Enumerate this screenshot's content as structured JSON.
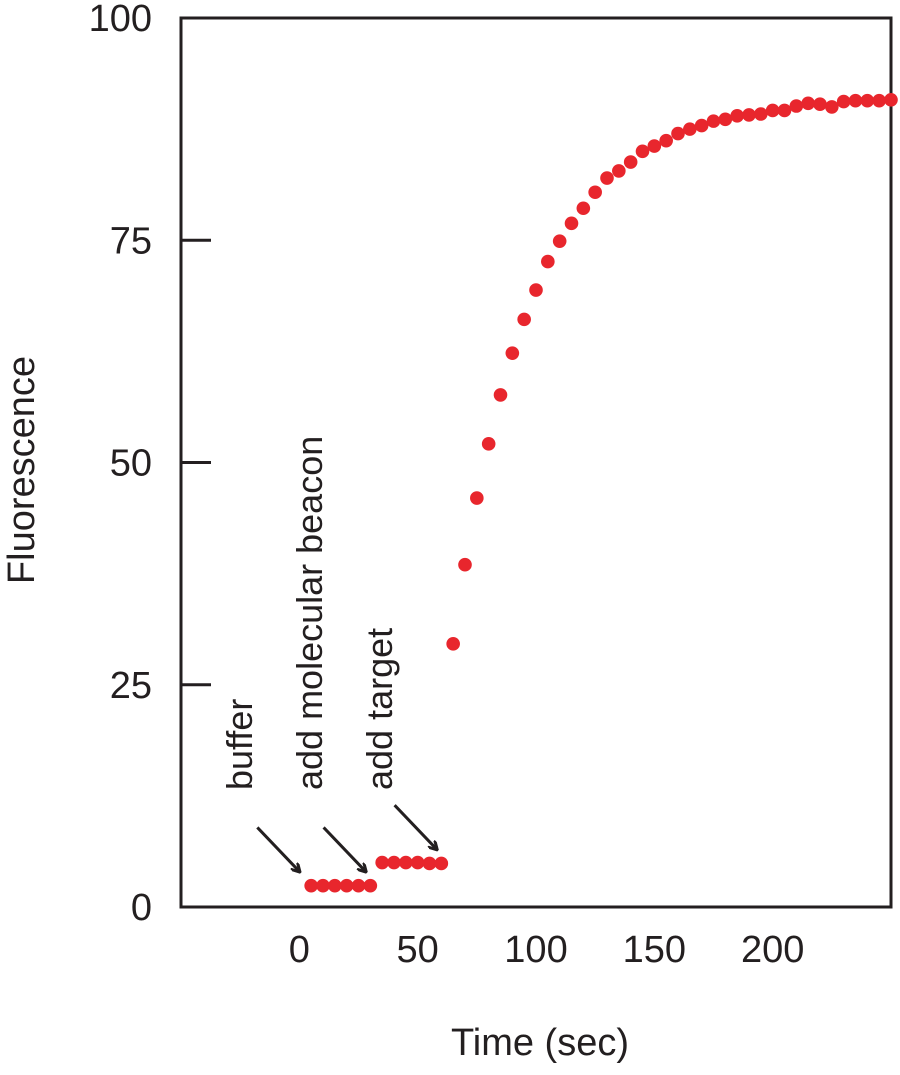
{
  "chart_data": {
    "type": "scatter",
    "xlabel": "Time (sec)",
    "ylabel": "Fluorescence",
    "xlim": [
      -50,
      250
    ],
    "ylim": [
      0,
      100
    ],
    "x_ticks": [
      0,
      50,
      100,
      150,
      200
    ],
    "y_ticks": [
      0,
      25,
      50,
      75,
      100
    ],
    "grid": false,
    "legend": "none",
    "marker_color": "#e8262d",
    "series": [
      {
        "points": [
          [
            5,
            2.4
          ],
          [
            10,
            2.4
          ],
          [
            15,
            2.4
          ],
          [
            20,
            2.4
          ],
          [
            25,
            2.4
          ],
          [
            30,
            2.4
          ],
          [
            35,
            5.0
          ],
          [
            40,
            5.0
          ],
          [
            45,
            5.0
          ],
          [
            50,
            5.0
          ],
          [
            55,
            4.9
          ],
          [
            60,
            4.9
          ],
          [
            65,
            29.6
          ],
          [
            70,
            38.5
          ],
          [
            75,
            46.0
          ],
          [
            80,
            52.1
          ],
          [
            85,
            57.6
          ],
          [
            90,
            62.3
          ],
          [
            95,
            66.1
          ],
          [
            100,
            69.4
          ],
          [
            105,
            72.6
          ],
          [
            110,
            74.9
          ],
          [
            115,
            76.9
          ],
          [
            120,
            78.6
          ],
          [
            125,
            80.4
          ],
          [
            130,
            82.0
          ],
          [
            135,
            82.8
          ],
          [
            140,
            83.8
          ],
          [
            145,
            85.0
          ],
          [
            150,
            85.6
          ],
          [
            155,
            86.2
          ],
          [
            160,
            87.0
          ],
          [
            165,
            87.5
          ],
          [
            170,
            87.9
          ],
          [
            175,
            88.4
          ],
          [
            180,
            88.6
          ],
          [
            185,
            89.0
          ],
          [
            190,
            89.1
          ],
          [
            195,
            89.2
          ],
          [
            200,
            89.6
          ],
          [
            205,
            89.6
          ],
          [
            210,
            90.1
          ],
          [
            215,
            90.4
          ],
          [
            220,
            90.3
          ],
          [
            225,
            90.0
          ],
          [
            230,
            90.6
          ],
          [
            235,
            90.7
          ],
          [
            240,
            90.7
          ],
          [
            245,
            90.7
          ],
          [
            250,
            90.8
          ]
        ]
      }
    ],
    "annotations": [
      {
        "text": "buffer",
        "arrow_to": [
          0,
          4
        ]
      },
      {
        "text": "add molecular beacon",
        "arrow_to": [
          28,
          4
        ]
      },
      {
        "text": "add target",
        "arrow_to": [
          58,
          6.5
        ]
      }
    ]
  }
}
